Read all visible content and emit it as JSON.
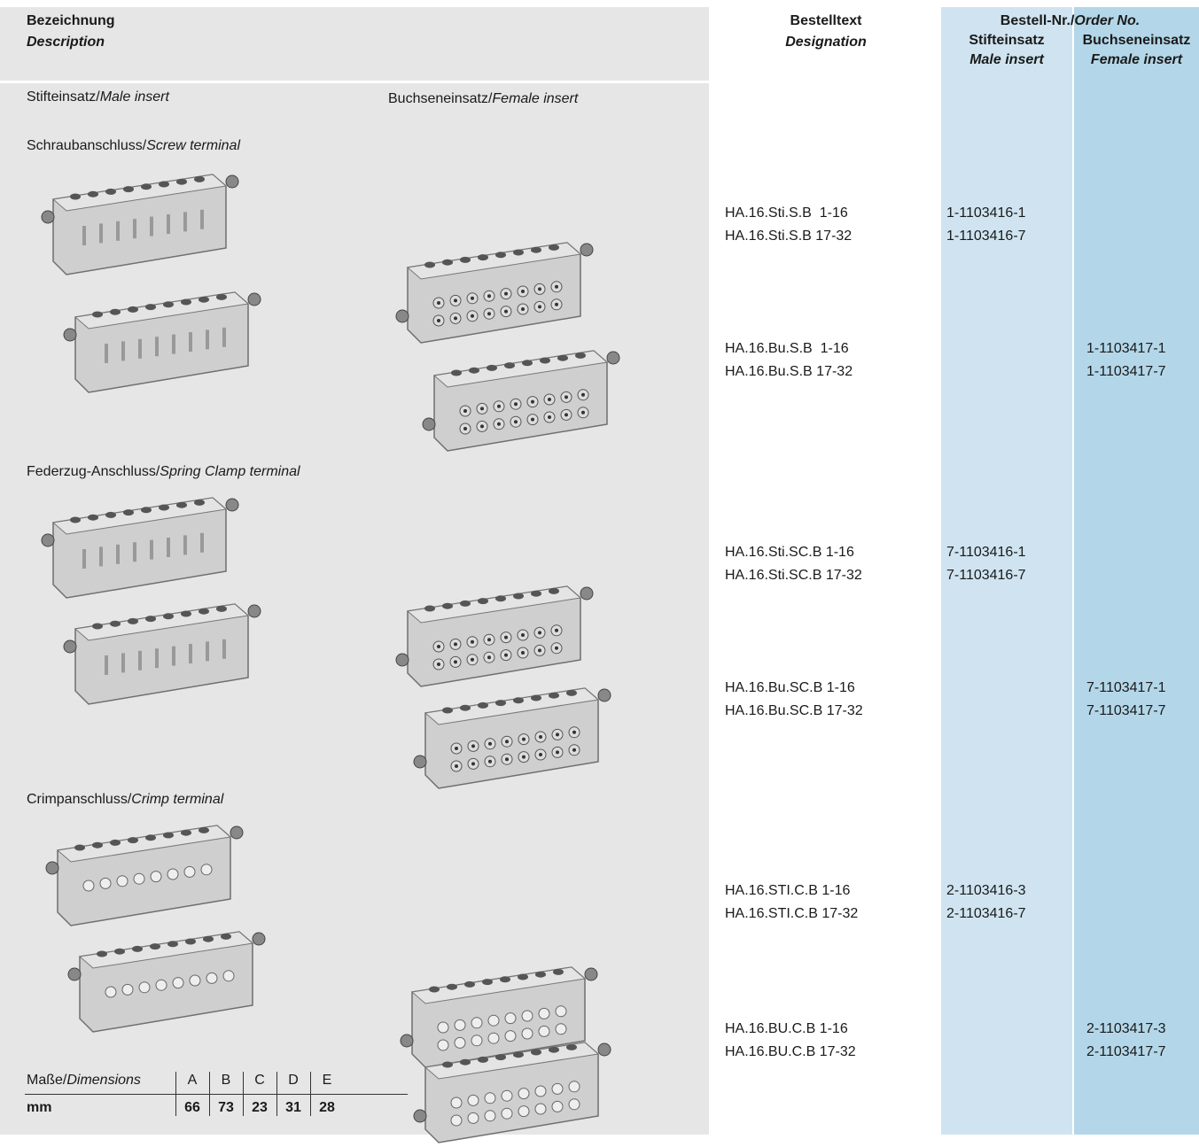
{
  "header": {
    "description": {
      "de": "Bezeichnung",
      "en": "Description"
    },
    "designation": {
      "de": "Bestelltext",
      "en": "Designation"
    },
    "order_no": {
      "de": "Bestell-Nr./",
      "en": "Order No."
    },
    "male": {
      "de": "Stifteinsatz",
      "en": "Male insert"
    },
    "female": {
      "de": "Buchseneinsatz",
      "en": "Female insert"
    }
  },
  "insert_labels": {
    "male": {
      "de": "Stifteinsatz/",
      "en": "Male insert"
    },
    "female": {
      "de": "Buchseneinsatz/",
      "en": "Female insert"
    }
  },
  "sections": [
    {
      "title_de": "Schraubanschluss/",
      "title_en": "Screw terminal",
      "rows": [
        {
          "designation": [
            "HA.16.Sti.S.B  1-16",
            "HA.16.Sti.S.B 17-32"
          ],
          "male": [
            "1-1103416-1",
            "1-1103416-7"
          ]
        },
        {
          "designation": [
            "HA.16.Bu.S.B  1-16",
            "HA.16.Bu.S.B 17-32"
          ],
          "female": [
            "1-1103417-1",
            "1-1103417-7"
          ]
        }
      ]
    },
    {
      "title_de": "Federzug-Anschluss/",
      "title_en": "Spring Clamp terminal",
      "rows": [
        {
          "designation": [
            "HA.16.Sti.SC.B 1-16",
            "HA.16.Sti.SC.B 17-32"
          ],
          "male": [
            "7-1103416-1",
            "7-1103416-7"
          ]
        },
        {
          "designation": [
            "HA.16.Bu.SC.B 1-16",
            "HA.16.Bu.SC.B 17-32"
          ],
          "female": [
            "7-1103417-1",
            "7-1103417-7"
          ]
        }
      ]
    },
    {
      "title_de": "Crimpanschluss/",
      "title_en": "Crimp terminal",
      "rows": [
        {
          "designation": [
            "HA.16.STI.C.B 1-16",
            "HA.16.STI.C.B 17-32"
          ],
          "male": [
            "2-1103416-3",
            "2-1103416-7"
          ]
        },
        {
          "designation": [
            "HA.16.BU.C.B 1-16",
            "HA.16.BU.C.B 17-32"
          ],
          "female": [
            "2-1103417-3",
            "2-1103417-7"
          ]
        }
      ]
    }
  ],
  "dimensions": {
    "label_de": "Maße/",
    "label_en": "Dimensions",
    "unit": "mm",
    "columns": [
      "A",
      "B",
      "C",
      "D",
      "E"
    ],
    "values": [
      66,
      73,
      23,
      31,
      28
    ]
  }
}
